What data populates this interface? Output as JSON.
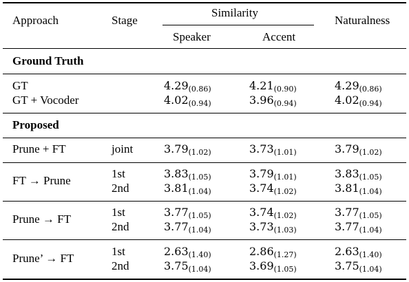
{
  "header": {
    "approach": "Approach",
    "stage": "Stage",
    "similarity": "Similarity",
    "speaker": "Speaker",
    "accent": "Accent",
    "naturalness": "Naturalness"
  },
  "sections": {
    "ground_truth": "Ground Truth",
    "proposed": "Proposed"
  },
  "rows": {
    "gt": {
      "approach": "GT",
      "stage": "",
      "speaker": "4.29",
      "speaker_sd": "(0.86)",
      "accent": "4.21",
      "accent_sd": "(0.90)",
      "nat": "4.29",
      "nat_sd": "(0.86)"
    },
    "gtvoc": {
      "approach": "GT + Vocoder",
      "stage": "",
      "speaker": "4.02",
      "speaker_sd": "(0.94)",
      "accent": "3.96",
      "accent_sd": "(0.94)",
      "nat": "4.02",
      "nat_sd": "(0.94)"
    },
    "pruneft": {
      "approach": "Prune + FT",
      "stage": "joint",
      "speaker": "3.79",
      "speaker_sd": "(1.02)",
      "accent": "3.73",
      "accent_sd": "(1.01)",
      "nat": "3.79",
      "nat_sd": "(1.02)"
    },
    "ftprune1": {
      "approach": "FT → Prune",
      "stage": "1st",
      "speaker": "3.83",
      "speaker_sd": "(1.05)",
      "accent": "3.79",
      "accent_sd": "(1.01)",
      "nat": "3.83",
      "nat_sd": "(1.05)"
    },
    "ftprune2": {
      "approach": "",
      "stage": "2nd",
      "speaker": "3.81",
      "speaker_sd": "(1.04)",
      "accent": "3.74",
      "accent_sd": "(1.02)",
      "nat": "3.81",
      "nat_sd": "(1.04)"
    },
    "pruneft1": {
      "approach": "Prune → FT",
      "stage": "1st",
      "speaker": "3.77",
      "speaker_sd": "(1.05)",
      "accent": "3.74",
      "accent_sd": "(1.02)",
      "nat": "3.77",
      "nat_sd": "(1.05)"
    },
    "pruneft2": {
      "approach": "",
      "stage": "2nd",
      "speaker": "3.77",
      "speaker_sd": "(1.04)",
      "accent": "3.73",
      "accent_sd": "(1.03)",
      "nat": "3.77",
      "nat_sd": "(1.04)"
    },
    "primeft1": {
      "approach": "Prune’ → FT",
      "stage": "1st",
      "speaker": "2.63",
      "speaker_sd": "(1.40)",
      "accent": "2.86",
      "accent_sd": "(1.27)",
      "nat": "2.63",
      "nat_sd": "(1.40)"
    },
    "primeft2": {
      "approach": "",
      "stage": "2nd",
      "speaker": "3.75",
      "speaker_sd": "(1.04)",
      "accent": "3.69",
      "accent_sd": "(1.05)",
      "nat": "3.75",
      "nat_sd": "(1.04)"
    }
  }
}
